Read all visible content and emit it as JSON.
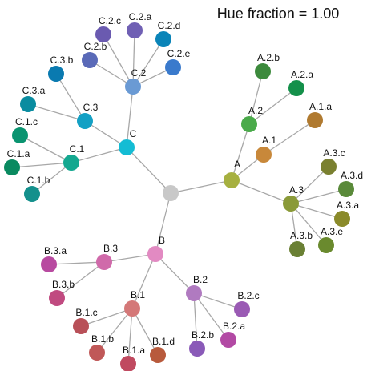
{
  "title": "Hue fraction = 1.00",
  "edge_color": "#a8a8a8",
  "root": {
    "label": "",
    "color": "#c8c8c8"
  },
  "nodes": [
    {
      "id": "A",
      "label": "A",
      "parent": "root",
      "color": "#a6b040"
    },
    {
      "id": "A.1",
      "label": "A.1",
      "parent": "A",
      "color": "#c8883a"
    },
    {
      "id": "A.1.a",
      "label": "A.1.a",
      "parent": "A.1",
      "color": "#b07a30"
    },
    {
      "id": "A.2",
      "label": "A.2",
      "parent": "A",
      "color": "#4aaa4a"
    },
    {
      "id": "A.2.a",
      "label": "A.2.a",
      "parent": "A.2",
      "color": "#14904a"
    },
    {
      "id": "A.2.b",
      "label": "A.2.b",
      "parent": "A.2",
      "color": "#3c8a3c"
    },
    {
      "id": "A.3",
      "label": "A.3",
      "parent": "A",
      "color": "#8a9a38"
    },
    {
      "id": "A.3.a",
      "label": "A.3.a",
      "parent": "A.3",
      "color": "#8a8a2a"
    },
    {
      "id": "A.3.b",
      "label": "A.3.b",
      "parent": "A.3",
      "color": "#6a8034"
    },
    {
      "id": "A.3.c",
      "label": "A.3.c",
      "parent": "A.3",
      "color": "#7a8030"
    },
    {
      "id": "A.3.d",
      "label": "A.3.d",
      "parent": "A.3",
      "color": "#5a8a3a"
    },
    {
      "id": "A.3.e",
      "label": "A.3.e",
      "parent": "A.3",
      "color": "#6a8a2e"
    },
    {
      "id": "B",
      "label": "B",
      "parent": "root",
      "color": "#e28ac2"
    },
    {
      "id": "B.1",
      "label": "B.1",
      "parent": "B",
      "color": "#d47878"
    },
    {
      "id": "B.1.a",
      "label": "B.1.a",
      "parent": "B.1",
      "color": "#c04a60"
    },
    {
      "id": "B.1.b",
      "label": "B.1.b",
      "parent": "B.1",
      "color": "#c05858"
    },
    {
      "id": "B.1.c",
      "label": "B.1.c",
      "parent": "B.1",
      "color": "#b85058"
    },
    {
      "id": "B.1.d",
      "label": "B.1.d",
      "parent": "B.1",
      "color": "#b85a3c"
    },
    {
      "id": "B.2",
      "label": "B.2",
      "parent": "B",
      "color": "#b07ac0"
    },
    {
      "id": "B.2.a",
      "label": "B.2.a",
      "parent": "B.2",
      "color": "#b24aa4"
    },
    {
      "id": "B.2.b",
      "label": "B.2.b",
      "parent": "B.2",
      "color": "#8a5ab8"
    },
    {
      "id": "B.2.c",
      "label": "B.2.c",
      "parent": "B.2",
      "color": "#9a5ab4"
    },
    {
      "id": "B.3",
      "label": "B.3",
      "parent": "B",
      "color": "#d06aaa"
    },
    {
      "id": "B.3.a",
      "label": "B.3.a",
      "parent": "B.3",
      "color": "#b84aa0"
    },
    {
      "id": "B.3.b",
      "label": "B.3.b",
      "parent": "B.3",
      "color": "#c04a80"
    },
    {
      "id": "C",
      "label": "C",
      "parent": "root",
      "color": "#14bcd4"
    },
    {
      "id": "C.1",
      "label": "C.1",
      "parent": "C",
      "color": "#14a890"
    },
    {
      "id": "C.1.a",
      "label": "C.1.a",
      "parent": "C.1",
      "color": "#0a8a60"
    },
    {
      "id": "C.1.b",
      "label": "C.1.b",
      "parent": "C.1",
      "color": "#14908c"
    },
    {
      "id": "C.1.c",
      "label": "C.1.c",
      "parent": "C.1",
      "color": "#0a9470"
    },
    {
      "id": "C.2",
      "label": "C.2",
      "parent": "C",
      "color": "#6a9ad4"
    },
    {
      "id": "C.2.a",
      "label": "C.2.a",
      "parent": "C.2",
      "color": "#7060b4"
    },
    {
      "id": "C.2.b",
      "label": "C.2.b",
      "parent": "C.2",
      "color": "#5a6ab8"
    },
    {
      "id": "C.2.c",
      "label": "C.2.c",
      "parent": "C.2",
      "color": "#6a5ab0"
    },
    {
      "id": "C.2.d",
      "label": "C.2.d",
      "parent": "C.2",
      "color": "#0a84b8"
    },
    {
      "id": "C.2.e",
      "label": "C.2.e",
      "parent": "C.2",
      "color": "#3a7acc"
    },
    {
      "id": "C.3",
      "label": "C.3",
      "parent": "C",
      "color": "#14a0c4"
    },
    {
      "id": "C.3.a",
      "label": "C.3.a",
      "parent": "C.3",
      "color": "#0a8ca0"
    },
    {
      "id": "C.3.b",
      "label": "C.3.b",
      "parent": "C.3",
      "color": "#0a7ab0"
    }
  ]
}
